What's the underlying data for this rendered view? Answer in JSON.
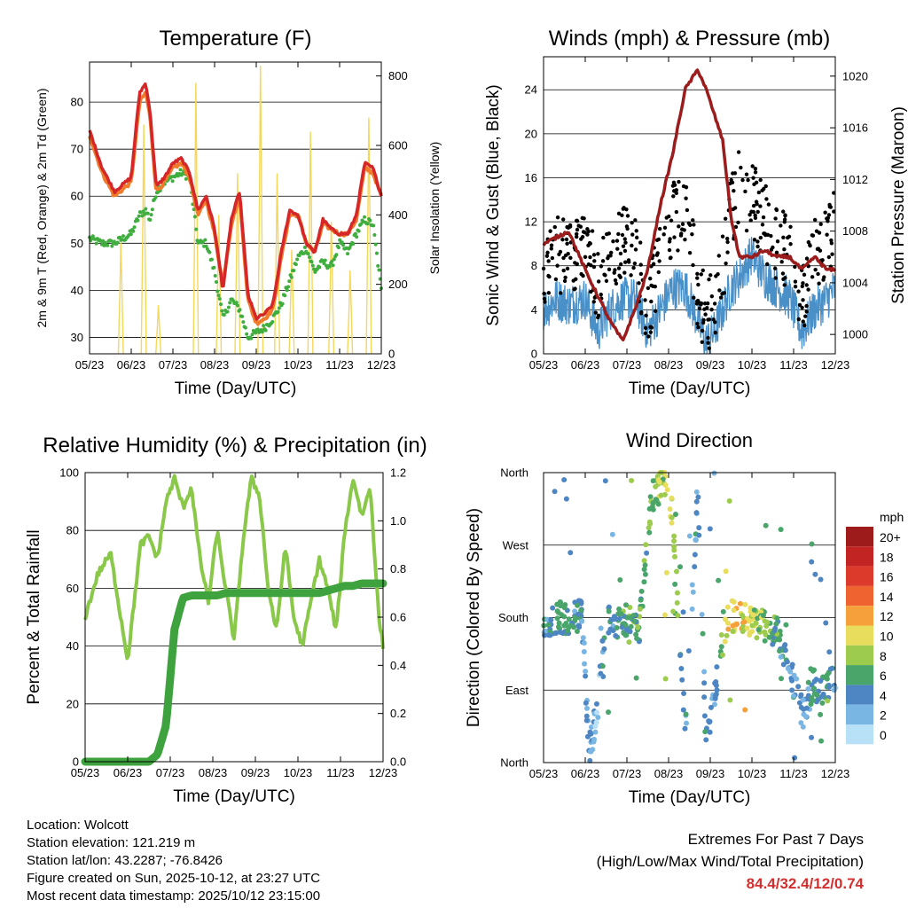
{
  "x_ticks": [
    "05/23",
    "06/23",
    "07/23",
    "08/23",
    "09/23",
    "10/23",
    "11/23",
    "12/23"
  ],
  "xlabel": "Time (Day/UTC)",
  "colors": {
    "temp2m": "#d62728",
    "temp9m": "#f07b2b",
    "dewpoint": "#3fae3f",
    "solar": "#f5d75a",
    "wind": "#4a90c8",
    "gust": "#000000",
    "pressure": "#9b1c1c",
    "rh": "#8ac84a",
    "precip": "#3ea33e"
  },
  "chart_data": [
    {
      "id": "temperature",
      "type": "line",
      "title": "Temperature (F)",
      "xlabel": "Time (Day/UTC)",
      "ylabel": "2m & 9m T (Red, Orange) & 2m Td (Green)",
      "y2label": "Solar Insolation (Yellow)",
      "ylim": [
        26.5,
        88.5
      ],
      "y_ticks": [
        30,
        40,
        50,
        60,
        70,
        80
      ],
      "y2lim": [
        0,
        840
      ],
      "y2_ticks": [
        0,
        200,
        400,
        600,
        800
      ],
      "x": [
        0,
        0.3,
        0.6,
        1,
        1.2,
        1.35,
        1.45,
        1.6,
        1.8,
        2,
        2.2,
        2.4,
        2.6,
        2.8,
        3,
        3.2,
        3.4,
        3.6,
        3.8,
        4,
        4.2,
        4.4,
        4.6,
        4.8,
        5,
        5.2,
        5.4,
        5.6,
        5.8,
        6,
        6.2,
        6.4,
        6.6,
        6.8,
        7
      ],
      "series": [
        {
          "name": "2m T (Red)",
          "values": [
            74,
            66,
            61,
            64,
            82,
            84,
            78,
            62,
            64,
            67,
            68,
            65,
            57,
            60,
            53,
            40,
            55,
            61,
            39,
            34,
            35,
            37,
            48,
            57,
            56,
            50,
            48,
            55,
            53,
            52,
            52,
            56,
            67,
            66,
            60
          ]
        },
        {
          "name": "9m T (Orange)",
          "values": [
            73,
            65,
            60,
            63,
            80,
            82,
            77,
            61,
            63,
            66,
            67,
            64,
            56,
            59,
            52,
            41,
            54,
            60,
            38,
            33,
            34,
            36,
            47,
            56,
            56,
            50,
            48,
            54,
            53,
            52,
            52,
            55,
            66,
            65,
            60
          ]
        },
        {
          "name": "2m Td (Green)",
          "values": [
            51,
            50,
            50,
            52,
            56,
            57,
            55,
            61,
            63,
            64,
            65,
            64,
            50,
            50,
            44,
            34,
            38,
            36,
            30,
            31,
            32,
            34,
            37,
            42,
            47,
            49,
            44,
            46,
            45,
            50,
            48,
            52,
            55,
            54,
            40
          ]
        },
        {
          "name": "Solar Insolation (Yellow)",
          "axis": "y2",
          "peaks": [
            [
              0.75,
              320
            ],
            [
              1.3,
              660
            ],
            [
              1.65,
              140
            ],
            [
              2.55,
              780
            ],
            [
              3.1,
              400
            ],
            [
              3.55,
              520
            ],
            [
              4.1,
              830
            ],
            [
              4.5,
              520
            ],
            [
              4.85,
              300
            ],
            [
              5.3,
              640
            ],
            [
              5.8,
              380
            ],
            [
              6.25,
              240
            ],
            [
              6.7,
              680
            ]
          ]
        }
      ]
    },
    {
      "id": "winds",
      "type": "scatter",
      "title": "Winds (mph) & Pressure (mb)",
      "xlabel": "Time (Day/UTC)",
      "ylabel": "Sonic Wind & Gust (Blue, Black)",
      "y2label": "Station Pressure (Maroon)",
      "ylim": [
        0,
        27
      ],
      "y_ticks": [
        0,
        4,
        8,
        12,
        16,
        20,
        24
      ],
      "y2lim": [
        998.5,
        1021.5
      ],
      "y2_ticks": [
        1000,
        1004,
        1008,
        1012,
        1016,
        1020
      ],
      "x": [
        0,
        0.3,
        0.6,
        1,
        1.3,
        1.6,
        1.9,
        2.2,
        2.5,
        2.8,
        3.1,
        3.4,
        3.7,
        3.9,
        4.1,
        4.3,
        4.5,
        4.7,
        5.0,
        5.3,
        5.6,
        5.9,
        6.2,
        6.5,
        6.8,
        7
      ],
      "series": [
        {
          "name": "Sonic Wind (Blue)",
          "values": [
            4,
            5,
            4.5,
            5,
            2,
            4,
            5,
            5,
            2,
            4,
            6,
            6,
            3,
            1,
            2,
            4,
            6,
            7,
            9,
            7,
            6,
            5,
            2,
            4,
            5,
            6
          ]
        },
        {
          "name": "Gust (Black)",
          "values": [
            8,
            9,
            9,
            10,
            6,
            9,
            10,
            10,
            4,
            9,
            12,
            13,
            6,
            3,
            5,
            8,
            13,
            15,
            14,
            12,
            10,
            9,
            5,
            9,
            10,
            13
          ]
        },
        {
          "name": "Station Pressure (Maroon)",
          "axis": "y2",
          "values": [
            1007,
            1007.5,
            1008,
            1005,
            1003,
            1001,
            999.5,
            1002,
            1005,
            1010,
            1014,
            1019,
            1020.5,
            1019,
            1017,
            1015,
            1009,
            1006,
            1006,
            1006.5,
            1006,
            1006,
            1005,
            1006,
            1005,
            1005
          ]
        }
      ]
    },
    {
      "id": "humidity",
      "type": "line",
      "title": "Relative Humidity (%) & Precipitation (in)",
      "xlabel": "Time (Day/UTC)",
      "ylabel": "Percent & Total Rainfall",
      "ylim": [
        0,
        100
      ],
      "y_ticks": [
        0,
        20,
        40,
        60,
        80,
        100
      ],
      "y2lim": [
        0,
        1.2
      ],
      "y2_ticks": [
        "0.0",
        "0.2",
        "0.4",
        "0.6",
        "0.8",
        "1.0",
        "1.2"
      ],
      "x": [
        0,
        0.3,
        0.6,
        1,
        1.3,
        1.5,
        1.7,
        1.9,
        2.1,
        2.3,
        2.5,
        2.7,
        2.9,
        3.1,
        3.3,
        3.5,
        3.7,
        3.9,
        4.1,
        4.3,
        4.5,
        4.7,
        4.9,
        5.1,
        5.3,
        5.5,
        5.7,
        5.9,
        6.1,
        6.3,
        6.5,
        6.7,
        6.9,
        7
      ],
      "series": [
        {
          "name": "Relative Humidity",
          "values": [
            50,
            65,
            72,
            35,
            75,
            78,
            70,
            90,
            98,
            88,
            95,
            70,
            55,
            80,
            60,
            42,
            75,
            98,
            92,
            60,
            45,
            75,
            50,
            40,
            55,
            70,
            60,
            45,
            80,
            98,
            85,
            95,
            50,
            40
          ]
        },
        {
          "name": "Total Rainfall",
          "axis": "y2",
          "values": [
            0,
            0,
            0,
            0,
            0,
            0,
            0.03,
            0.15,
            0.55,
            0.68,
            0.69,
            0.69,
            0.69,
            0.69,
            0.7,
            0.7,
            0.7,
            0.7,
            0.7,
            0.7,
            0.7,
            0.7,
            0.7,
            0.7,
            0.7,
            0.7,
            0.71,
            0.72,
            0.73,
            0.73,
            0.74,
            0.74,
            0.74,
            0.74
          ]
        }
      ]
    },
    {
      "id": "direction",
      "type": "scatter",
      "title": "Wind Direction",
      "xlabel": "Time (Day/UTC)",
      "ylabel": "Direction (Colored By Speed)",
      "y_ticks": [
        "North",
        "East",
        "South",
        "West",
        "North"
      ],
      "ylim": [
        0,
        360
      ],
      "x": [
        0,
        0.2,
        0.4,
        0.6,
        0.9,
        1.1,
        1.3,
        1.5,
        1.8,
        2.1,
        2.3,
        2.6,
        2.9,
        3.1,
        3.4,
        3.7,
        3.9,
        4.1,
        4.4,
        4.7,
        5,
        5.3,
        5.6,
        5.9,
        6.2,
        6.5,
        6.8,
        7
      ],
      "series": [
        {
          "name": "Direction (deg)",
          "values": [
            170,
            180,
            180,
            175,
            185,
            15,
            70,
            180,
            175,
            178,
            170,
            330,
            350,
            310,
            40,
            340,
            20,
            80,
            185,
            180,
            175,
            170,
            160,
            120,
            60,
            100,
            90,
            110
          ]
        },
        {
          "name": "Speed (mph)",
          "values": [
            4,
            4,
            5,
            5,
            4,
            3,
            2,
            4,
            5,
            6,
            6,
            7,
            9,
            8,
            4,
            3,
            4,
            2,
            10,
            11,
            9,
            7,
            5,
            4,
            3,
            5,
            6,
            4
          ]
        }
      ],
      "legend": {
        "title": "mph",
        "labels": [
          "20+",
          "18",
          "16",
          "14",
          "12",
          "10",
          "8",
          "6",
          "4",
          "2",
          "0"
        ],
        "colors": [
          "#9e1b1b",
          "#c22323",
          "#dc3a2b",
          "#ee6330",
          "#f6a03c",
          "#e8dd5c",
          "#9ccb4e",
          "#4aa56a",
          "#4d86c2",
          "#7ab6e4",
          "#b8e0f6"
        ]
      }
    }
  ],
  "info": {
    "location": "Location: Wolcott",
    "elevation": "Station elevation: 121.219 m",
    "latlon": "Station lat/lon: 43.2287; -76.8426",
    "created": "Figure created on Sun, 2025-10-12, at 23:27 UTC",
    "timestamp": "Most recent data timestamp: 2025/10/12 23:15:00"
  },
  "extremes": {
    "title": "Extremes For Past 7 Days",
    "subtitle": "(High/Low/Max Wind/Total Precipitation)",
    "values": "84.4/32.4/12/0.74"
  }
}
